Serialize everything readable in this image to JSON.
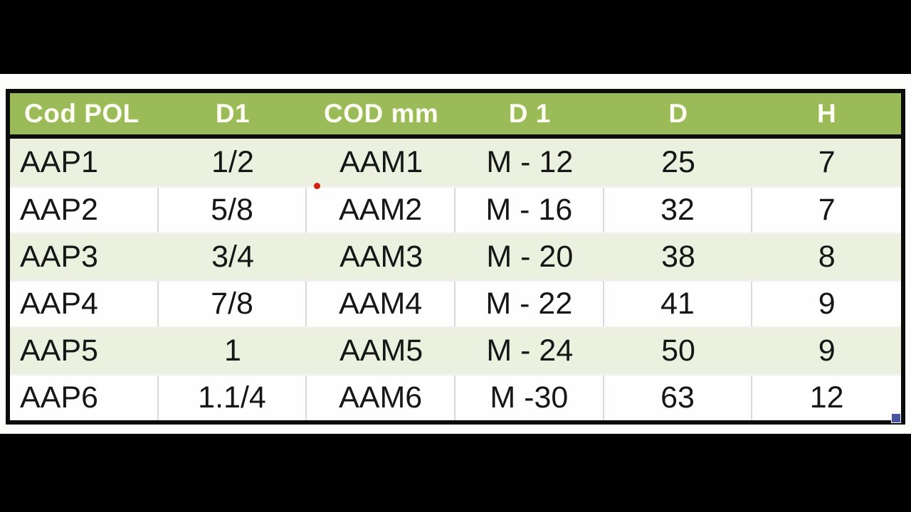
{
  "colors": {
    "letterbox": "#000000",
    "page_background": "#fdfdfb",
    "header_bg": "#9bbb59",
    "header_text": "#fdfdf2",
    "row_alt_bg": "#ebf1de",
    "row_bg": "#fefefe",
    "outer_border": "#0c0c0c",
    "grid_line": "#d9d9d9",
    "body_text": "#161616",
    "red_dot": "#d32011",
    "selection_handle": "#4c53a3"
  },
  "table": {
    "columns": [
      "Cod POL",
      "D1",
      "COD mm",
      "D 1",
      "D",
      "H"
    ],
    "rows": [
      {
        "cells": [
          "AAP1",
          "1/2",
          "AAM1",
          "M - 12",
          "25",
          "7"
        ]
      },
      {
        "cells": [
          "AAP2",
          "5/8",
          "AAM2",
          "M - 16",
          "32",
          "7"
        ]
      },
      {
        "cells": [
          "AAP3",
          "3/4",
          "AAM3",
          "M - 20",
          "38",
          "8"
        ]
      },
      {
        "cells": [
          "AAP4",
          "7/8",
          "AAM4",
          "M - 22",
          "41",
          "9"
        ]
      },
      {
        "cells": [
          "AAP5",
          "1",
          "AAM5",
          "M - 24",
          "50",
          "9"
        ]
      },
      {
        "cells": [
          "AAP6",
          "1.1/4",
          "AAM6",
          "M -30",
          "63",
          "12"
        ]
      }
    ]
  }
}
